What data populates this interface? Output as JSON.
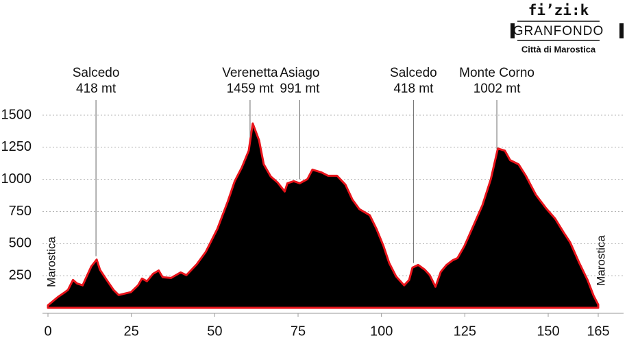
{
  "chart_data": {
    "type": "area",
    "logo": {
      "brand": "fi’zi:k",
      "event": "GRANFONDO",
      "place": "Città di Marostica"
    },
    "start_label": "Marostica",
    "end_label": "Marostica",
    "x": [
      0,
      3,
      5,
      6,
      7.5,
      8.7,
      10.4,
      11.6,
      13,
      14.6,
      15.6,
      17.6,
      19.7,
      21.2,
      24.9,
      27,
      28.2,
      29.7,
      31.5,
      33.2,
      34.4,
      36.9,
      39.8,
      41.5,
      44.6,
      47.3,
      50.8,
      53.9,
      56,
      58.1,
      60.2,
      61.4,
      63.3,
      64.7,
      66.8,
      68.9,
      71,
      71.8,
      73.7,
      75.5,
      77.8,
      79.3,
      82,
      84,
      86.7,
      89.2,
      91.3,
      93.4,
      96.5,
      98.5,
      100.6,
      102.3,
      104.4,
      106.8,
      108.3,
      109.3,
      111,
      113,
      114.5,
      116.2,
      117.8,
      119.5,
      121.4,
      122.8,
      124.9,
      127.6,
      130.3,
      132.8,
      134.9,
      137,
      138.6,
      141.1,
      143.2,
      146.3,
      149.4,
      152.1,
      154.6,
      156.6,
      159.3,
      161.8,
      163.6,
      165
    ],
    "values": [
      20,
      85,
      120,
      140,
      217,
      190,
      175,
      245,
      323,
      376,
      297,
      217,
      138,
      100,
      122,
      175,
      228,
      207,
      265,
      291,
      238,
      233,
      276,
      254,
      339,
      435,
      615,
      827,
      986,
      1092,
      1224,
      1436,
      1304,
      1118,
      1023,
      975,
      906,
      970,
      986,
      970,
      1002,
      1076,
      1055,
      1028,
      1028,
      959,
      843,
      768,
      721,
      615,
      482,
      350,
      244,
      175,
      217,
      313,
      334,
      297,
      254,
      164,
      281,
      334,
      371,
      387,
      482,
      641,
      800,
      1002,
      1240,
      1224,
      1150,
      1118,
      1033,
      880,
      774,
      694,
      588,
      509,
      350,
      217,
      95,
      25
    ],
    "fill": "#000000",
    "color": "#e8141b",
    "annotations": [
      {
        "name": "Salcedo",
        "label": "418 mt",
        "x": 14.4
      },
      {
        "name": "Verenetta",
        "label": "1459 mt",
        "x": 60.6
      },
      {
        "name": "Asiago",
        "label": "991 mt",
        "x": 75.5
      },
      {
        "name": "Salcedo",
        "label": "418 mt",
        "x": 109.6
      },
      {
        "name": "Monte Corno",
        "label": "1002 mt",
        "x": 134.6
      }
    ],
    "xlim": [
      0,
      165
    ],
    "xticks": [
      0,
      25,
      50,
      75,
      100,
      125,
      150,
      165
    ],
    "ylim": [
      0,
      1500
    ],
    "yticks": [
      250,
      500,
      750,
      1000,
      1250,
      1500
    ],
    "grid": true
  }
}
